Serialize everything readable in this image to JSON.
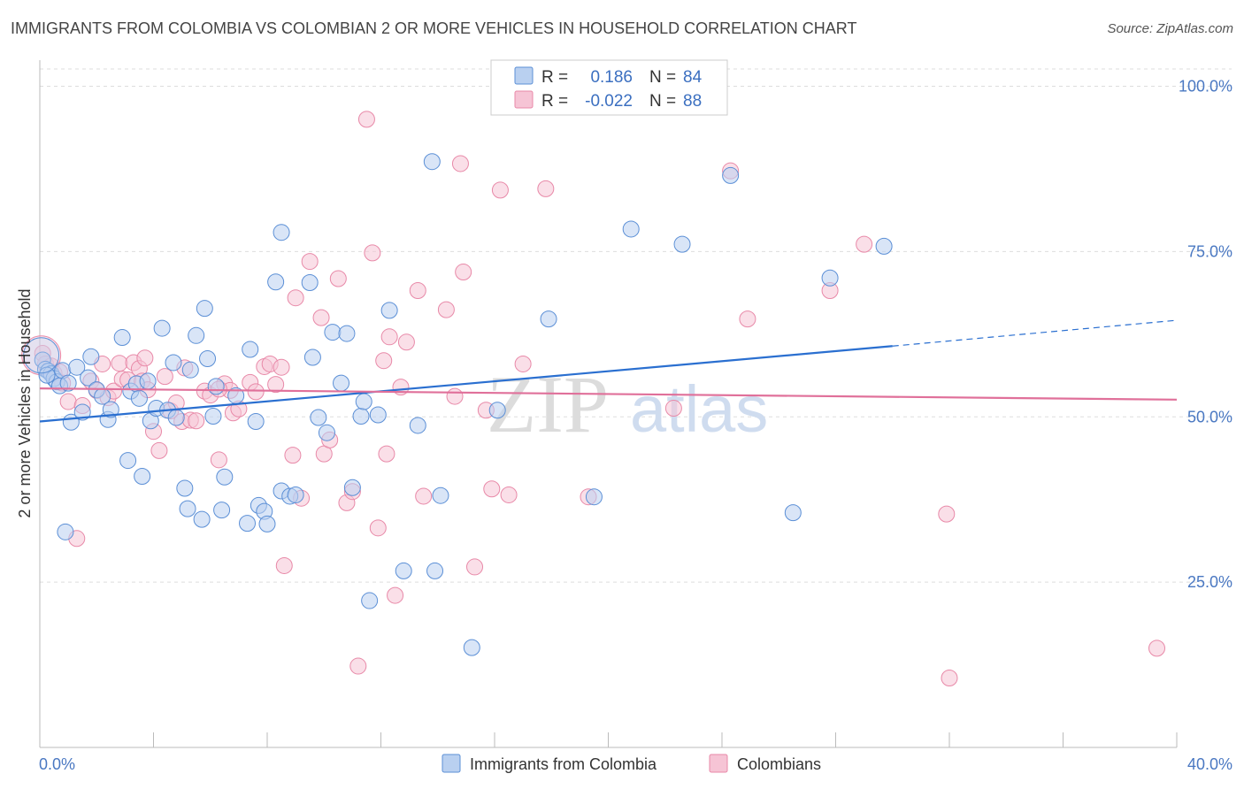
{
  "title": "IMMIGRANTS FROM COLOMBIA VS COLOMBIAN 2 OR MORE VEHICLES IN HOUSEHOLD CORRELATION CHART",
  "source": "Source: ZipAtlas.com",
  "watermark": {
    "zip": "ZIP",
    "atlas": "atlas"
  },
  "colors": {
    "blue": "#5b8fd6",
    "blue_fill": "#b9d0f0",
    "blue_line": "#2a6fd0",
    "pink": "#e889a8",
    "pink_fill": "#f6c4d5",
    "pink_line": "#e0709a",
    "axis_text": "#4a78c2",
    "grid": "#dddddd"
  },
  "legend": {
    "rows": [
      {
        "r_label": "R =",
        "r_value": "0.186",
        "n_label": "N =",
        "n_value": "84"
      },
      {
        "r_label": "R =",
        "r_value": "-0.022",
        "n_label": "N =",
        "n_value": "88"
      }
    ]
  },
  "bottom_legend": [
    "Immigrants from Colombia",
    "Colombians"
  ],
  "chart_data": {
    "type": "scatter",
    "title": "IMMIGRANTS FROM COLOMBIA VS COLOMBIAN 2 OR MORE VEHICLES IN HOUSEHOLD CORRELATION CHART",
    "xlabel": "",
    "ylabel": "2 or more Vehicles in Household",
    "xlim": [
      0,
      40
    ],
    "ylim": [
      0,
      105
    ],
    "x_tick_labels": [
      "0.0%",
      "40.0%"
    ],
    "y_ticks": [
      25,
      50,
      75,
      100
    ],
    "y_tick_labels": [
      "25.0%",
      "50.0%",
      "75.0%",
      "100.0%"
    ],
    "grid": "horizontal dashed",
    "legend_placement": "top-center",
    "series": [
      {
        "name": "Immigrants from Colombia",
        "color": "#5b8fd6",
        "trend": {
          "x": [
            0,
            30,
            40
          ],
          "y": [
            49.3,
            60.7,
            64.6
          ],
          "solid_until": 30
        },
        "points": [
          [
            0.1,
            58.6
          ],
          [
            0.2,
            57.2
          ],
          [
            0.3,
            56.9
          ],
          [
            0.4,
            56.5
          ],
          [
            0.5,
            55.8
          ],
          [
            0.6,
            55.3
          ],
          [
            0.7,
            54.7
          ],
          [
            0.8,
            57.0
          ],
          [
            0.9,
            32.6
          ],
          [
            1.0,
            55.1
          ],
          [
            1.1,
            49.2
          ],
          [
            1.3,
            57.5
          ],
          [
            1.5,
            50.7
          ],
          [
            1.7,
            55.9
          ],
          [
            1.8,
            59.1
          ],
          [
            2.0,
            54.1
          ],
          [
            2.2,
            53.1
          ],
          [
            2.4,
            49.6
          ],
          [
            2.5,
            51.1
          ],
          [
            2.9,
            62.0
          ],
          [
            3.1,
            43.4
          ],
          [
            3.2,
            53.9
          ],
          [
            3.4,
            55.0
          ],
          [
            3.5,
            52.8
          ],
          [
            3.6,
            41.0
          ],
          [
            3.8,
            55.4
          ],
          [
            3.9,
            49.4
          ],
          [
            4.1,
            51.3
          ],
          [
            4.3,
            63.4
          ],
          [
            4.5,
            51.0
          ],
          [
            4.7,
            58.2
          ],
          [
            4.8,
            49.9
          ],
          [
            5.1,
            39.2
          ],
          [
            5.2,
            36.1
          ],
          [
            5.3,
            57.1
          ],
          [
            5.5,
            62.3
          ],
          [
            5.7,
            34.5
          ],
          [
            5.8,
            66.4
          ],
          [
            5.9,
            58.8
          ],
          [
            6.1,
            50.1
          ],
          [
            6.2,
            54.6
          ],
          [
            6.4,
            35.9
          ],
          [
            6.5,
            40.9
          ],
          [
            6.9,
            53.2
          ],
          [
            7.3,
            33.9
          ],
          [
            7.4,
            60.2
          ],
          [
            7.6,
            49.3
          ],
          [
            7.7,
            36.6
          ],
          [
            7.9,
            35.7
          ],
          [
            8.0,
            33.8
          ],
          [
            8.3,
            70.4
          ],
          [
            8.5,
            77.9
          ],
          [
            8.5,
            38.8
          ],
          [
            8.8,
            38.0
          ],
          [
            9.0,
            38.2
          ],
          [
            9.5,
            70.3
          ],
          [
            9.6,
            59.0
          ],
          [
            9.8,
            49.9
          ],
          [
            10.1,
            47.6
          ],
          [
            10.3,
            62.8
          ],
          [
            10.6,
            55.1
          ],
          [
            10.8,
            62.6
          ],
          [
            11.0,
            39.3
          ],
          [
            11.3,
            50.1
          ],
          [
            11.4,
            52.3
          ],
          [
            11.6,
            22.2
          ],
          [
            11.9,
            50.3
          ],
          [
            12.3,
            66.1
          ],
          [
            12.8,
            26.7
          ],
          [
            13.3,
            48.7
          ],
          [
            13.8,
            88.6
          ],
          [
            13.9,
            26.7
          ],
          [
            14.1,
            38.1
          ],
          [
            15.2,
            15.1
          ],
          [
            16.1,
            51.0
          ],
          [
            17.9,
            64.8
          ],
          [
            19.5,
            37.9
          ],
          [
            20.8,
            78.4
          ],
          [
            22.6,
            76.1
          ],
          [
            24.3,
            86.5
          ],
          [
            26.5,
            35.5
          ],
          [
            27.8,
            71.0
          ],
          [
            29.7,
            75.8
          ],
          [
            0.25,
            56.3
          ]
        ]
      },
      {
        "name": "Colombians",
        "color": "#e889a8",
        "trend": {
          "x": [
            0,
            40
          ],
          "y": [
            54.3,
            52.6
          ],
          "solid_until": 40
        },
        "points": [
          [
            0.1,
            59.6
          ],
          [
            0.2,
            58.0
          ],
          [
            0.4,
            57.7
          ],
          [
            0.5,
            56.6
          ],
          [
            0.7,
            56.8
          ],
          [
            0.8,
            55.1
          ],
          [
            1.0,
            52.3
          ],
          [
            1.3,
            31.6
          ],
          [
            1.5,
            51.7
          ],
          [
            1.8,
            55.4
          ],
          [
            2.0,
            54.0
          ],
          [
            2.2,
            58.0
          ],
          [
            2.4,
            52.9
          ],
          [
            2.6,
            53.9
          ],
          [
            2.8,
            58.1
          ],
          [
            2.9,
            55.7
          ],
          [
            3.1,
            55.6
          ],
          [
            3.3,
            58.2
          ],
          [
            3.5,
            57.3
          ],
          [
            3.6,
            55.4
          ],
          [
            3.7,
            58.9
          ],
          [
            3.8,
            54.1
          ],
          [
            4.0,
            47.8
          ],
          [
            4.2,
            44.9
          ],
          [
            4.4,
            56.1
          ],
          [
            4.6,
            50.9
          ],
          [
            4.8,
            52.1
          ],
          [
            5.0,
            49.3
          ],
          [
            5.1,
            57.4
          ],
          [
            5.3,
            49.5
          ],
          [
            5.5,
            49.4
          ],
          [
            5.8,
            53.9
          ],
          [
            6.0,
            53.3
          ],
          [
            6.3,
            43.5
          ],
          [
            6.5,
            55.0
          ],
          [
            6.7,
            54.0
          ],
          [
            6.8,
            50.6
          ],
          [
            7.0,
            51.2
          ],
          [
            7.4,
            55.2
          ],
          [
            7.6,
            53.8
          ],
          [
            7.9,
            57.6
          ],
          [
            8.1,
            58.0
          ],
          [
            8.3,
            54.9
          ],
          [
            8.5,
            57.5
          ],
          [
            8.6,
            27.5
          ],
          [
            8.9,
            44.2
          ],
          [
            9.0,
            68.0
          ],
          [
            9.2,
            37.7
          ],
          [
            9.5,
            73.5
          ],
          [
            10.0,
            44.4
          ],
          [
            10.2,
            46.5
          ],
          [
            10.5,
            70.9
          ],
          [
            10.8,
            37.0
          ],
          [
            11.0,
            38.7
          ],
          [
            11.2,
            12.3
          ],
          [
            11.5,
            95.0
          ],
          [
            11.7,
            74.8
          ],
          [
            11.9,
            33.2
          ],
          [
            12.2,
            44.4
          ],
          [
            12.3,
            62.1
          ],
          [
            12.5,
            23.0
          ],
          [
            12.7,
            54.5
          ],
          [
            12.9,
            61.3
          ],
          [
            13.3,
            69.1
          ],
          [
            13.5,
            38.0
          ],
          [
            14.3,
            66.2
          ],
          [
            14.6,
            53.1
          ],
          [
            14.8,
            88.3
          ],
          [
            14.9,
            71.9
          ],
          [
            15.3,
            27.3
          ],
          [
            15.7,
            51.0
          ],
          [
            15.9,
            39.1
          ],
          [
            16.2,
            84.3
          ],
          [
            16.5,
            38.2
          ],
          [
            17.0,
            58.0
          ],
          [
            17.8,
            84.5
          ],
          [
            19.3,
            37.9
          ],
          [
            22.3,
            51.3
          ],
          [
            24.3,
            87.2
          ],
          [
            24.9,
            64.8
          ],
          [
            27.8,
            69.1
          ],
          [
            29.0,
            76.1
          ],
          [
            31.9,
            35.3
          ],
          [
            32.0,
            10.5
          ],
          [
            39.3,
            15.0
          ],
          [
            6.3,
            54.2
          ],
          [
            9.9,
            65.0
          ],
          [
            12.1,
            58.5
          ]
        ]
      }
    ]
  }
}
